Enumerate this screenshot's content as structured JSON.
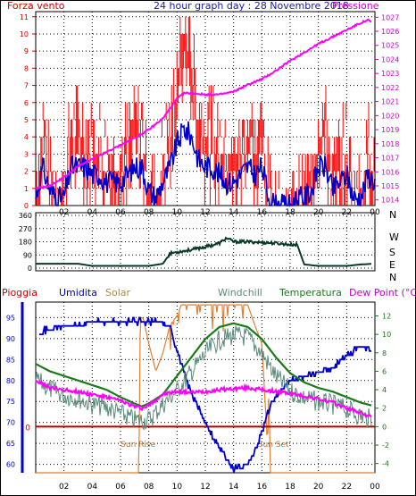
{
  "header": {
    "left": "Forza vento",
    "center": "24 hour graph day : 28 Novembre 2018",
    "right": "Pressione"
  },
  "colors": {
    "frame": "#000000",
    "wind": "#ff0000",
    "wind_avg": "#0000cc",
    "pressure": "#ff00ff",
    "direction": "#0a3a2a",
    "rain": "#b00000",
    "humidity": "#0000cc",
    "solar": "#e08030",
    "windchill": "#5a8a7a",
    "temperature": "#1a7a1a",
    "dewpoint": "#ff00ff",
    "grid": "#000000"
  },
  "x_ticks": [
    "02",
    "04",
    "06",
    "08",
    "10",
    "12",
    "14",
    "16",
    "18",
    "20",
    "22",
    "00"
  ],
  "chart_data": [
    {
      "type": "line",
      "title": "24 hour graph day : 28 Novembre 2018",
      "left_axis": {
        "label": "Forza vento",
        "ticks": [
          "0",
          "1",
          "2",
          "3",
          "4",
          "5",
          "6",
          "7",
          "8",
          "9",
          "10",
          "11"
        ],
        "ylim": [
          0,
          11.3
        ]
      },
      "right_axis": {
        "label": "Pressione",
        "ticks": [
          "1014",
          "1015",
          "1016",
          "1017",
          "1018",
          "1019",
          "1020",
          "1021",
          "1022",
          "1023",
          "1024",
          "1025",
          "1026",
          "1027"
        ],
        "ylim": [
          1013.6,
          1027.4
        ]
      },
      "x_hours": [
        0,
        24
      ],
      "series": [
        {
          "name": "Forza vento",
          "color": "red",
          "x": [
            0,
            0.5,
            1,
            1.5,
            2,
            2.5,
            3,
            3.5,
            4,
            4.5,
            5,
            5.5,
            6,
            6.5,
            7,
            7.5,
            8,
            8.5,
            9,
            9.5,
            10,
            10.5,
            11,
            11.5,
            12,
            12.5,
            13,
            13.5,
            14,
            14.5,
            15,
            15.5,
            16,
            16.5,
            17,
            17.5,
            18,
            18.5,
            19,
            19.5,
            20,
            20.5,
            21,
            21.5,
            22,
            22.5,
            23,
            23.5,
            24
          ],
          "y": [
            1,
            5,
            2,
            1,
            1,
            5,
            5,
            5,
            4,
            4,
            3,
            3,
            3,
            4,
            5,
            5,
            2,
            1,
            3,
            5,
            8,
            10,
            9,
            6,
            5,
            5,
            4,
            3,
            3,
            4,
            5,
            4,
            5,
            1,
            0,
            0,
            0,
            1,
            1,
            2,
            5,
            5,
            2,
            3,
            4,
            1,
            1,
            4,
            3
          ]
        },
        {
          "name": "Pressione",
          "color": "magenta",
          "x": [
            0,
            1,
            2,
            3,
            4,
            5,
            6,
            7,
            8,
            9,
            10,
            10.5,
            11,
            12,
            13,
            14,
            15,
            16,
            17,
            18,
            19,
            20,
            21,
            22,
            23,
            23.5,
            24
          ],
          "y": [
            1014.8,
            1015.0,
            1015.6,
            1016.4,
            1016.9,
            1017.4,
            1017.9,
            1018.4,
            1019.0,
            1019.8,
            1021.2,
            1021.6,
            1021.6,
            1021.5,
            1021.5,
            1021.7,
            1022.2,
            1022.6,
            1023.2,
            1023.9,
            1024.5,
            1025.1,
            1025.6,
            1026.1,
            1026.6,
            1026.8,
            1026.5
          ]
        }
      ]
    },
    {
      "type": "line",
      "title": "",
      "left_axis": {
        "label": "",
        "ticks": [
          "0",
          "90",
          "180",
          "270",
          "360"
        ],
        "ylim": [
          0,
          360
        ]
      },
      "right_axis": {
        "label": "",
        "ticks": [
          "N",
          "W",
          "S",
          "E",
          "N"
        ]
      },
      "series": [
        {
          "name": "",
          "x": [
            0,
            1,
            2,
            3,
            4,
            5,
            6,
            7,
            8,
            9,
            9.5,
            10,
            11,
            12,
            13,
            13.5,
            14,
            15,
            16,
            17,
            18,
            18.5,
            19,
            20,
            21,
            22,
            23,
            24
          ],
          "y": [
            30,
            30,
            30,
            30,
            15,
            15,
            15,
            15,
            15,
            30,
            100,
            110,
            125,
            145,
            170,
            205,
            180,
            180,
            175,
            170,
            160,
            160,
            25,
            15,
            15,
            15,
            25,
            30
          ]
        }
      ]
    },
    {
      "type": "line",
      "title": "",
      "labels": [
        "Pioggia",
        "Umidita",
        "Solar",
        "Windchill",
        "Temperatura",
        "Dew Point (°C)"
      ],
      "left_axis": {
        "label": "Umidita",
        "ticks": [
          "60",
          "65",
          "70",
          "75",
          "80",
          "85",
          "90",
          "95"
        ],
        "ylim": [
          58,
          98.7
        ]
      },
      "right_axis": {
        "label": "Dew Point (°C)",
        "ticks": [
          "-4",
          "-2",
          "0",
          "2",
          "4",
          "6",
          "8",
          "10",
          "12"
        ],
        "ylim": [
          -5,
          13.5
        ]
      },
      "rain_marker": {
        "label": "0",
        "value": 0
      },
      "annotations": [
        "Sun Rise",
        "Sun Set"
      ],
      "sunrise_hour": 7.4,
      "sunset_hour": 16.6,
      "series": [
        {
          "name": "Umidita",
          "x": [
            0,
            0.5,
            1,
            2,
            3,
            4,
            5,
            6,
            7,
            8,
            9,
            9.5,
            10,
            11,
            12,
            13,
            14,
            15,
            15.5,
            16,
            16.5,
            17,
            17.5,
            18,
            19,
            20,
            21,
            22,
            23,
            24
          ],
          "y": [
            92,
            92,
            92,
            93,
            93,
            94,
            94,
            94,
            94,
            94,
            94,
            93,
            87,
            77,
            70,
            64,
            59,
            60,
            63,
            68,
            73,
            76,
            78,
            80,
            81,
            82,
            83,
            86,
            88,
            87
          ]
        },
        {
          "name": "Temperatura",
          "x": [
            0,
            1,
            2,
            3,
            4,
            5,
            6,
            7,
            7.5,
            8,
            9,
            10,
            11,
            12,
            13,
            14,
            15,
            16,
            17,
            18,
            19,
            20,
            21,
            22,
            23,
            24
          ],
          "y": [
            6.8,
            6.0,
            5.5,
            5.0,
            4.5,
            4.0,
            3.2,
            2.5,
            2.2,
            2.5,
            3.5,
            5.5,
            7.5,
            9.5,
            10.8,
            11.2,
            10.8,
            9.5,
            7.5,
            5.8,
            4.8,
            4.2,
            3.8,
            3.2,
            2.6,
            2.2
          ]
        },
        {
          "name": "Windchill",
          "x": [
            0,
            1,
            2,
            3,
            4,
            5,
            6,
            7,
            8,
            9,
            10,
            11,
            12,
            13,
            14,
            15,
            16,
            17,
            18,
            19,
            20,
            21,
            22,
            23,
            24
          ],
          "y": [
            6.2,
            5.2,
            4.5,
            4.2,
            3.5,
            3.2,
            2.5,
            1.8,
            1.8,
            3.5,
            5.0,
            7.0,
            9.0,
            10.5,
            11.0,
            10.8,
            9.0,
            6.5,
            5.0,
            4.2,
            3.8,
            3.5,
            3.0,
            2.2,
            1.8
          ]
        },
        {
          "name": "Dew Point (°C)",
          "x": [
            0,
            1,
            2,
            3,
            4,
            5,
            6,
            7,
            7.5,
            8,
            9,
            10,
            11,
            12,
            13,
            14,
            15,
            16,
            17,
            18,
            19,
            20,
            21,
            22,
            23,
            24
          ],
          "y": [
            5.0,
            4.2,
            4.0,
            3.8,
            3.5,
            3.2,
            2.8,
            2.2,
            2.0,
            2.3,
            3.5,
            3.8,
            3.7,
            3.8,
            4.0,
            4.1,
            4.2,
            4.0,
            3.8,
            3.6,
            3.3,
            3.0,
            2.6,
            2.0,
            1.5,
            0.8
          ]
        },
        {
          "name": "Solar",
          "x": [
            0,
            7.3,
            7.4,
            7.6,
            8,
            8.5,
            9,
            9.5,
            10,
            10.3,
            11,
            12,
            13,
            14,
            15,
            15.5,
            16,
            16.4,
            16.5,
            16.6,
            24
          ],
          "y": [
            -5,
            -5,
            11.8,
            11.8,
            9,
            6,
            8,
            11,
            12,
            13.2,
            13.2,
            13.2,
            13.2,
            13.2,
            13.2,
            11,
            9,
            -2,
            4,
            -5,
            -5
          ]
        }
      ]
    }
  ]
}
